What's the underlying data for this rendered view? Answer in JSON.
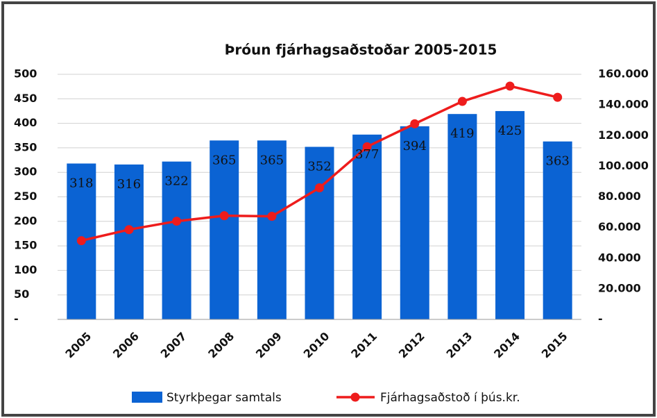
{
  "chart_data": {
    "type": "bar_line",
    "title": "Þróun fjárhagsaðstoðar 2005-2015",
    "categories": [
      "2005",
      "2006",
      "2007",
      "2008",
      "2009",
      "2010",
      "2011",
      "2012",
      "2013",
      "2014",
      "2015"
    ],
    "series": [
      {
        "name": "Styrkþegar samtals",
        "type": "bar",
        "color": "#0b63d3",
        "values": [
          318,
          316,
          322,
          365,
          365,
          352,
          377,
          394,
          419,
          425,
          363
        ]
      },
      {
        "name": "Fjárhagsaðstoð í þús.kr.",
        "type": "line",
        "axis": "y2",
        "color": "#ee1c1c",
        "values": [
          51400,
          58600,
          64100,
          67700,
          67300,
          85900,
          112700,
          127700,
          142300,
          152300,
          145000
        ]
      }
    ],
    "ylim": [
      0,
      500
    ],
    "yticks": [
      {
        "value": 0,
        "label": "-"
      },
      50,
      100,
      150,
      200,
      250,
      300,
      350,
      400,
      450,
      500
    ],
    "y2lim": [
      0,
      160000
    ],
    "y2ticks": [
      {
        "value": 0,
        "label": "-"
      },
      {
        "value": 20000,
        "label": "20.000"
      },
      {
        "value": 40000,
        "label": "40.000"
      },
      {
        "value": 60000,
        "label": "60.000"
      },
      {
        "value": 80000,
        "label": "80.000"
      },
      {
        "value": 100000,
        "label": "100.000"
      },
      {
        "value": 120000,
        "label": "120.000"
      },
      {
        "value": 140000,
        "label": "140.000"
      },
      {
        "value": 160000,
        "label": "160.000"
      }
    ],
    "grid": true,
    "legend": "bottom"
  }
}
